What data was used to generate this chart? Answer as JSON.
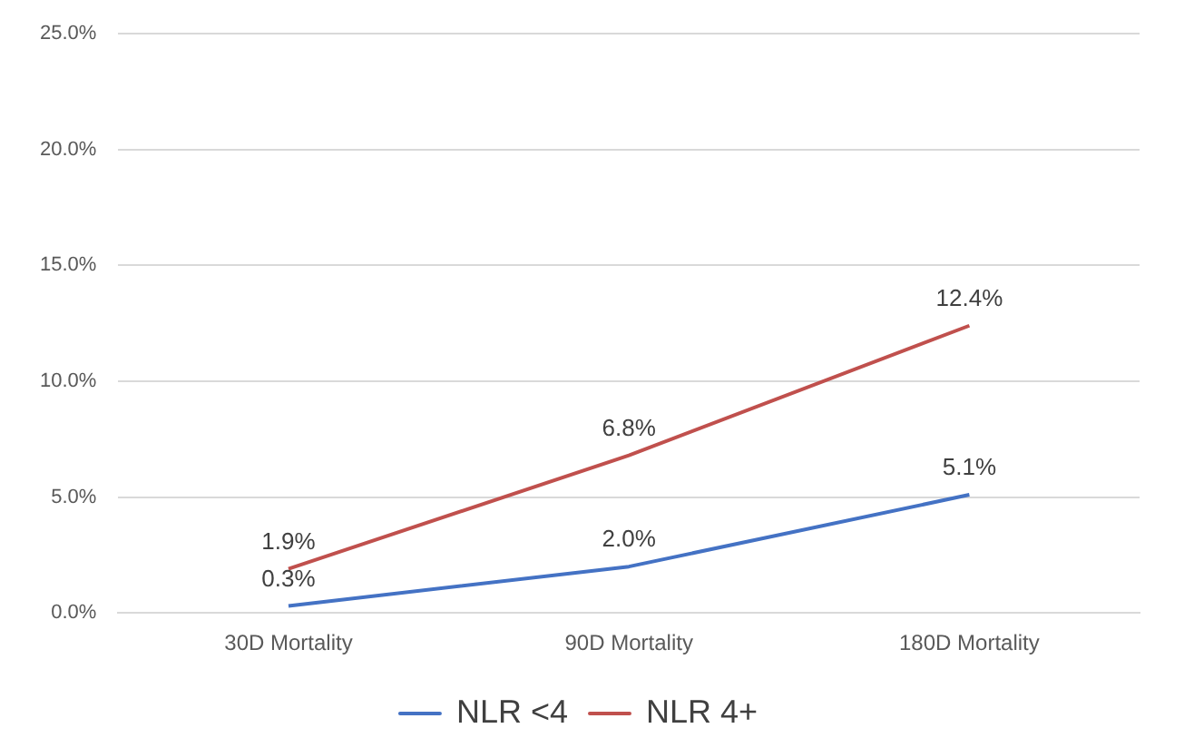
{
  "chart_data": {
    "type": "line",
    "categories": [
      "30D Mortality",
      "90D Mortality",
      "180D Mortality"
    ],
    "series": [
      {
        "name": "NLR <4",
        "color": "#4472c4",
        "values": [
          0.3,
          2.0,
          5.1
        ],
        "value_labels": [
          "0.3%",
          "2.0%",
          "5.1%"
        ]
      },
      {
        "name": "NLR 4+",
        "color": "#c0504d",
        "values": [
          1.9,
          6.8,
          12.4
        ],
        "value_labels": [
          "1.9%",
          "6.8%",
          "12.4%"
        ]
      }
    ],
    "ylim": [
      0,
      25
    ],
    "yticks": [
      {
        "value": 0,
        "label": "0.0%"
      },
      {
        "value": 5,
        "label": "5.0%"
      },
      {
        "value": 10,
        "label": "10.0%"
      },
      {
        "value": 15,
        "label": "15.0%"
      },
      {
        "value": 20,
        "label": "20.0%"
      },
      {
        "value": 25,
        "label": "25.0%"
      }
    ],
    "grid": "y",
    "legend": "bottom",
    "marker": "none",
    "line_style": "solid"
  }
}
